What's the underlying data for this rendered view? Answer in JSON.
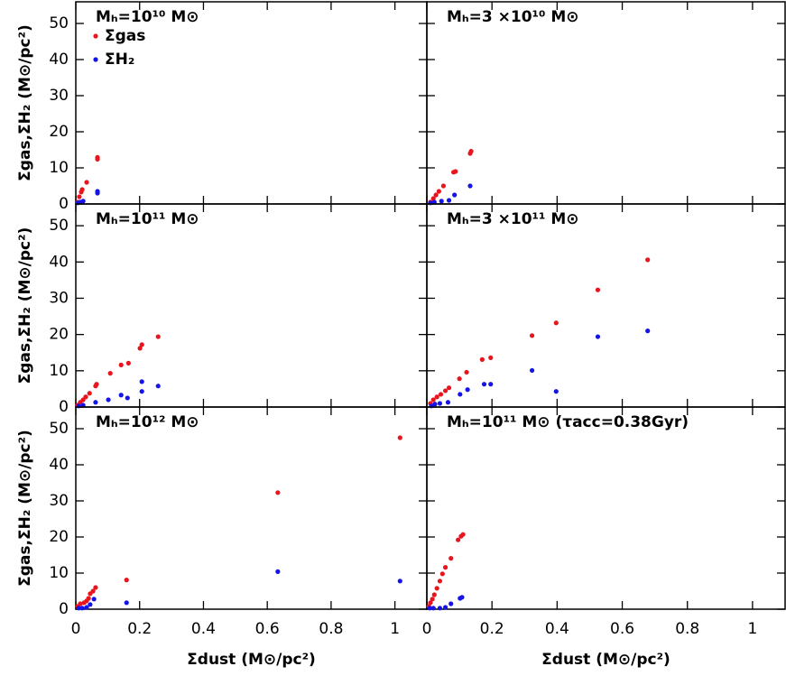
{
  "chart_data": [
    {
      "type": "scatter",
      "title": "Mₕ=10¹⁰ M⊙",
      "y_label": "Σgas,ΣH₂ (M⊙/pc²)",
      "legend": "upper left",
      "xtick_labels": false,
      "xlim": [
        0,
        1.1
      ],
      "ylim": [
        0,
        56
      ],
      "xticks": [
        0,
        0.2,
        0.4,
        0.6,
        0.8,
        1
      ],
      "yticks": [
        0,
        10,
        20,
        30,
        40,
        50
      ],
      "series": [
        {
          "name": "Σgas",
          "color": "#e8141e",
          "x": [
            0.006,
            0.011,
            0.017,
            0.02,
            0.034,
            0.068,
            0.068
          ],
          "values": [
            0.5,
            2,
            3.3,
            4,
            6,
            12.4,
            12.9
          ]
        },
        {
          "name": "ΣH₂",
          "color": "#1414e8",
          "x": [
            0.006,
            0.014,
            0.023,
            0.068,
            0.068
          ],
          "values": [
            0.3,
            0.5,
            0.8,
            3,
            3.5
          ]
        }
      ]
    },
    {
      "type": "scatter",
      "title": "Mₕ=3 ×10¹⁰ M⊙",
      "xtick_labels": false,
      "xlim": [
        0,
        1.1
      ],
      "ylim": [
        0,
        56
      ],
      "xticks": [
        0,
        0.2,
        0.4,
        0.6,
        0.8,
        1
      ],
      "yticks": [
        0,
        10,
        20,
        30,
        40,
        50
      ],
      "series": [
        {
          "color": "#e8141e",
          "x": [
            0.011,
            0.02,
            0.028,
            0.037,
            0.051,
            0.082,
            0.088,
            0.133,
            0.136
          ],
          "values": [
            0.5,
            1.5,
            2.5,
            3.5,
            5,
            8.8,
            9,
            14,
            14.6
          ]
        },
        {
          "color": "#1414e8",
          "x": [
            0.011,
            0.023,
            0.045,
            0.068,
            0.085,
            0.133
          ],
          "values": [
            0.3,
            0.5,
            0.8,
            1,
            2.5,
            5
          ]
        }
      ]
    },
    {
      "type": "scatter",
      "title": "Mₕ=10¹¹ M⊙",
      "y_label": "Σgas,ΣH₂ (M⊙/pc²)",
      "xtick_labels": false,
      "xlim": [
        0,
        1.1
      ],
      "ylim": [
        0,
        56
      ],
      "xticks": [
        0,
        0.2,
        0.4,
        0.6,
        0.8,
        1
      ],
      "yticks": [
        0,
        10,
        20,
        30,
        40,
        50
      ],
      "series": [
        {
          "color": "#e8141e",
          "x": [
            0.006,
            0.014,
            0.023,
            0.031,
            0.043,
            0.062,
            0.065,
            0.108,
            0.142,
            0.165,
            0.201,
            0.207,
            0.258
          ],
          "values": [
            0.5,
            1.3,
            2,
            2.8,
            3.8,
            5.8,
            6.3,
            9.3,
            11.6,
            12.1,
            16.2,
            17.2,
            19.4
          ]
        },
        {
          "color": "#1414e8",
          "x": [
            0.009,
            0.023,
            0.062,
            0.102,
            0.142,
            0.162,
            0.207,
            0.207,
            0.258
          ],
          "values": [
            0.3,
            0.5,
            1.3,
            2,
            3.3,
            2.5,
            7,
            4.3,
            5.8
          ]
        }
      ]
    },
    {
      "type": "scatter",
      "title": "Mₕ=3 ×10¹¹ M⊙",
      "xtick_labels": false,
      "xlim": [
        0,
        1.1
      ],
      "ylim": [
        0,
        56
      ],
      "xticks": [
        0,
        0.2,
        0.4,
        0.6,
        0.8,
        1
      ],
      "yticks": [
        0,
        10,
        20,
        30,
        40,
        50
      ],
      "series": [
        {
          "color": "#e8141e",
          "x": [
            0.011,
            0.02,
            0.031,
            0.043,
            0.057,
            0.068,
            0.1,
            0.122,
            0.17,
            0.196,
            0.323,
            0.397,
            0.525,
            0.678
          ],
          "values": [
            1,
            2,
            2.8,
            3.5,
            4.5,
            5.3,
            7.8,
            9.6,
            13.1,
            13.6,
            19.7,
            23.2,
            32.3,
            40.6
          ]
        },
        {
          "color": "#1414e8",
          "x": [
            0.014,
            0.025,
            0.04,
            0.065,
            0.102,
            0.125,
            0.176,
            0.196,
            0.323,
            0.397,
            0.525,
            0.678
          ],
          "values": [
            0.3,
            0.8,
            1,
            1.3,
            3.5,
            4.8,
            6.3,
            6.3,
            10.1,
            4.3,
            19.4,
            21
          ]
        }
      ]
    },
    {
      "type": "scatter",
      "title": "Mₕ=10¹² M⊙",
      "y_label": "Σgas,ΣH₂ (M⊙/pc²)",
      "x_label": "Σdust (M⊙/pc²)",
      "xtick_labels": true,
      "xlim": [
        0,
        1.1
      ],
      "ylim": [
        0,
        56
      ],
      "xticks": [
        0,
        0.2,
        0.4,
        0.6,
        0.8,
        1
      ],
      "yticks": [
        0,
        10,
        20,
        30,
        40,
        50
      ],
      "series": [
        {
          "color": "#e8141e",
          "x": [
            0.006,
            0.014,
            0.026,
            0.034,
            0.04,
            0.045,
            0.054,
            0.062,
            0.159,
            0.633,
            1.016
          ],
          "values": [
            0.8,
            1.5,
            1.8,
            2.3,
            3,
            4.3,
            5,
            6,
            8.1,
            32.3,
            47.5
          ]
        },
        {
          "color": "#1414e8",
          "x": [
            0.009,
            0.02,
            0.034,
            0.045,
            0.057,
            0.159,
            0.633,
            1.016
          ],
          "values": [
            0.3,
            0.3,
            0.5,
            1.3,
            2.8,
            1.8,
            10.4,
            7.8
          ]
        }
      ]
    },
    {
      "type": "scatter",
      "title": "Mₕ=10¹¹ M⊙ (τacc=0.38Gyr)",
      "x_label": "Σdust (M⊙/pc²)",
      "xtick_labels": true,
      "xlim": [
        0,
        1.1
      ],
      "ylim": [
        0,
        56
      ],
      "xticks": [
        0,
        0.2,
        0.4,
        0.6,
        0.8,
        1
      ],
      "yticks": [
        0,
        10,
        20,
        30,
        40,
        50
      ],
      "series": [
        {
          "color": "#e8141e",
          "x": [
            0.006,
            0.011,
            0.017,
            0.023,
            0.031,
            0.04,
            0.048,
            0.057,
            0.074,
            0.096,
            0.105,
            0.111
          ],
          "values": [
            0.8,
            1.8,
            2.8,
            4,
            5.8,
            7.8,
            9.8,
            11.6,
            14.1,
            19.2,
            20.2,
            20.7
          ]
        },
        {
          "color": "#1414e8",
          "x": [
            0.009,
            0.02,
            0.04,
            0.057,
            0.074,
            0.102,
            0.108
          ],
          "values": [
            0.3,
            0.3,
            0.3,
            0.5,
            1.5,
            3,
            3.3
          ]
        }
      ]
    }
  ]
}
